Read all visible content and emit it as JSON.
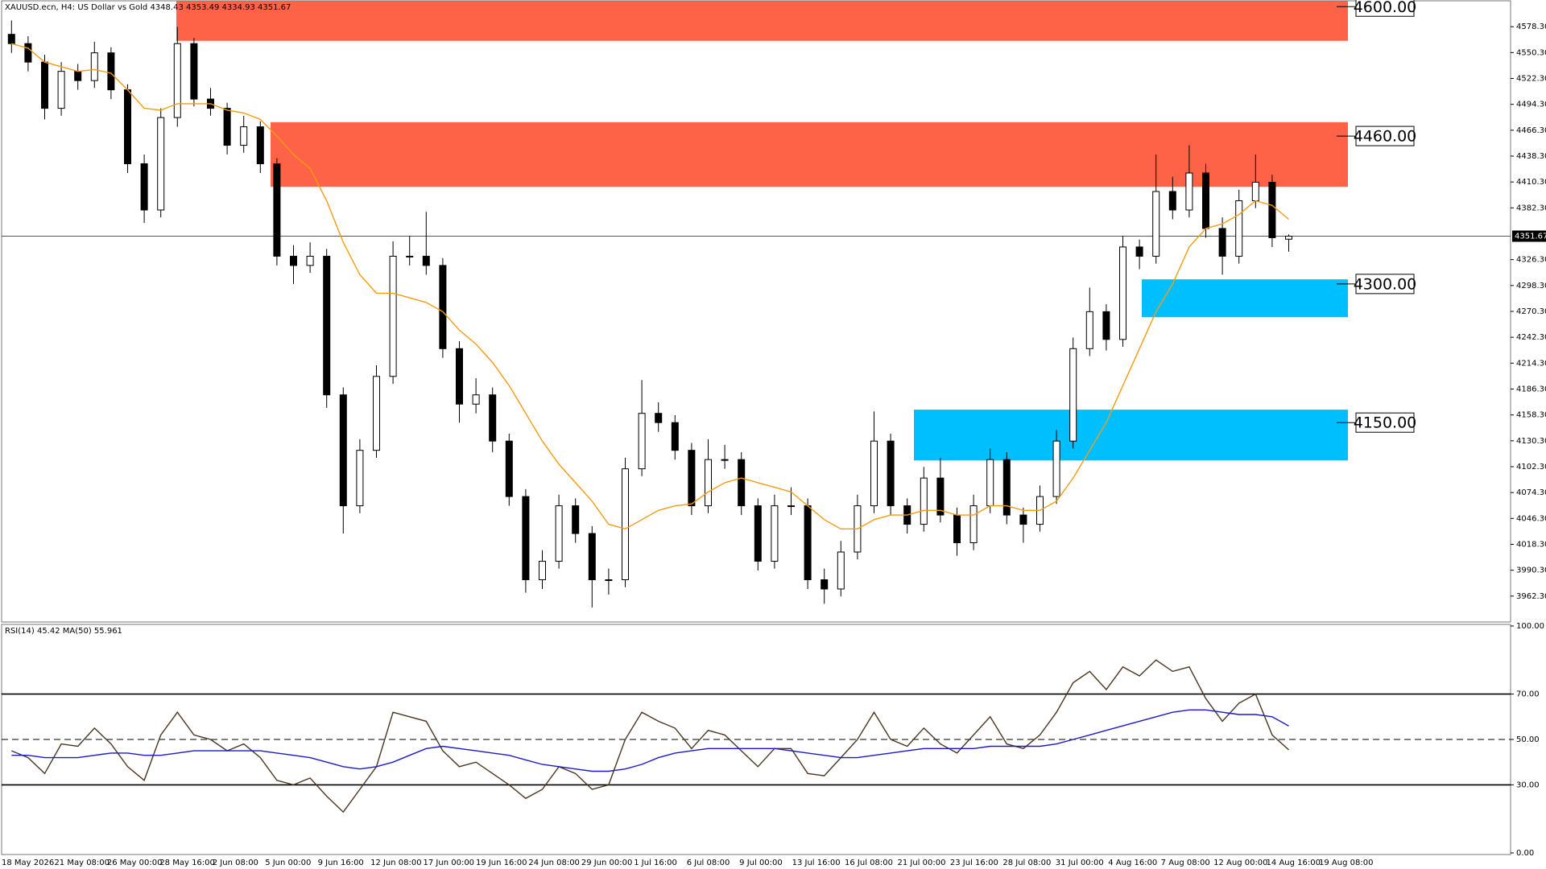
{
  "chart_data": [
    {
      "type": "candlestick",
      "title": "XAUUSD.ecn, H4:  US Dollar vs Gold  4348.43 4353.49 4334.93 4351.67",
      "date_labels": [
        "18 May 2026",
        "21 May 08:00",
        "26 May 00:00",
        "28 May 16:00",
        "2 Jun 08:00",
        "5 Jun 00:00",
        "9 Jun 16:00",
        "12 Jun 08:00",
        "17 Jun 00:00",
        "19 Jun 16:00",
        "24 Jun 08:00",
        "29 Jun 00:00",
        "1 Jul 16:00",
        "6 Jul 08:00",
        "9 Jul 00:00",
        "13 Jul 16:00",
        "16 Jul 08:00",
        "21 Jul 00:00",
        "23 Jul 16:00",
        "28 Jul 08:00",
        "31 Jul 00:00",
        "4 Aug 16:00",
        "7 Aug 08:00",
        "12 Aug 00:00",
        "14 Aug 16:00",
        "19 Aug 08:00"
      ],
      "ylim": [
        3934.3,
        4606.3
      ],
      "yticks": [
        {
          "value": 3962.3,
          "label": "3962.30"
        },
        {
          "value": 3990.3,
          "label": "3990.30"
        },
        {
          "value": 4018.3,
          "label": "4018.30"
        },
        {
          "value": 4046.3,
          "label": "4046.30"
        },
        {
          "value": 4074.3,
          "label": "4074.30"
        },
        {
          "value": 4102.3,
          "label": "4102.30"
        },
        {
          "value": 4130.3,
          "label": "4130.30"
        },
        {
          "value": 4158.3,
          "label": "4158.30"
        },
        {
          "value": 4186.3,
          "label": "4186.30"
        },
        {
          "value": 4214.3,
          "label": "4214.30"
        },
        {
          "value": 4242.3,
          "label": "4242.30"
        },
        {
          "value": 4270.3,
          "label": "4270.30"
        },
        {
          "value": 4298.3,
          "label": "4298.30"
        },
        {
          "value": 4326.3,
          "label": "4326.30"
        },
        {
          "value": 4382.3,
          "label": "4382.30"
        },
        {
          "value": 4410.3,
          "label": "4410.30"
        },
        {
          "value": 4438.3,
          "label": "4438.30"
        },
        {
          "value": 4466.3,
          "label": "4466.30"
        },
        {
          "value": 4494.3,
          "label": "4494.30"
        },
        {
          "value": 4522.3,
          "label": "4522.30"
        },
        {
          "value": 4550.3,
          "label": "4550.30"
        },
        {
          "value": 4578.3,
          "label": "4578.30"
        }
      ],
      "current_price": {
        "value": 4351.67,
        "label": "4351.67"
      },
      "zones": [
        {
          "top": 4606,
          "bottom": 4563,
          "color": "#ff6347",
          "label": {
            "value": 4600,
            "label": "4600.00"
          }
        },
        {
          "top": 4475,
          "bottom": 4405,
          "color": "#ff6347",
          "label": {
            "value": 4460,
            "label": "4460.00"
          }
        },
        {
          "top": 4305,
          "bottom": 4264,
          "color": "#00bfff",
          "label": {
            "value": 4300,
            "label": "4300.00"
          }
        },
        {
          "top": 4164,
          "bottom": 4109,
          "color": "#00bfff",
          "label": {
            "value": 4150,
            "label": "4150.00"
          }
        }
      ],
      "series": [
        {
          "color": "#000000",
          "values": [
            [
              4570,
              4585,
              4550,
              4560
            ],
            [
              4560,
              4568,
              4530,
              4540
            ],
            [
              4540,
              4548,
              4478,
              4490
            ],
            [
              4490,
              4540,
              4482,
              4530
            ],
            [
              4530,
              4538,
              4510,
              4520
            ],
            [
              4520,
              4562,
              4512,
              4550
            ],
            [
              4550,
              4556,
              4500,
              4510
            ],
            [
              4510,
              4516,
              4420,
              4430
            ],
            [
              4430,
              4440,
              4366,
              4380
            ],
            [
              4380,
              4490,
              4372,
              4480
            ],
            [
              4480,
              4578,
              4470,
              4560
            ],
            [
              4560,
              4566,
              4492,
              4500
            ],
            [
              4500,
              4512,
              4482,
              4490
            ],
            [
              4490,
              4496,
              4440,
              4450
            ],
            [
              4450,
              4482,
              4442,
              4470
            ],
            [
              4470,
              4476,
              4420,
              4430
            ],
            [
              4430,
              4436,
              4320,
              4330
            ],
            [
              4330,
              4342,
              4300,
              4320
            ],
            [
              4320,
              4345,
              4312,
              4330
            ],
            [
              4330,
              4338,
              4166,
              4180
            ],
            [
              4180,
              4188,
              4030,
              4060
            ],
            [
              4060,
              4132,
              4052,
              4120
            ],
            [
              4120,
              4212,
              4112,
              4200
            ],
            [
              4200,
              4346,
              4192,
              4330
            ],
            [
              4330,
              4352,
              4320,
              4330
            ],
            [
              4330,
              4378,
              4310,
              4320
            ],
            [
              4320,
              4328,
              4220,
              4230
            ],
            [
              4230,
              4238,
              4150,
              4170
            ],
            [
              4170,
              4198,
              4160,
              4180
            ],
            [
              4180,
              4188,
              4118,
              4130
            ],
            [
              4130,
              4138,
              4060,
              4070
            ],
            [
              4070,
              4078,
              3966,
              3980
            ],
            [
              3980,
              4012,
              3970,
              4000
            ],
            [
              4000,
              4072,
              3992,
              4060
            ],
            [
              4060,
              4068,
              4020,
              4030
            ],
            [
              4030,
              4038,
              3950,
              3980
            ],
            [
              3980,
              3992,
              3964,
              3980
            ],
            [
              3980,
              4112,
              3972,
              4100
            ],
            [
              4100,
              4196,
              4092,
              4160
            ],
            [
              4160,
              4172,
              4140,
              4150
            ],
            [
              4150,
              4158,
              4110,
              4120
            ],
            [
              4120,
              4128,
              4050,
              4060
            ],
            [
              4060,
              4132,
              4052,
              4110
            ],
            [
              4110,
              4126,
              4100,
              4110
            ],
            [
              4110,
              4118,
              4050,
              4060
            ],
            [
              4060,
              4068,
              3990,
              4000
            ],
            [
              4000,
              4072,
              3992,
              4060
            ],
            [
              4060,
              4080,
              4050,
              4060
            ],
            [
              4060,
              4068,
              3970,
              3980
            ],
            [
              3980,
              3992,
              3954,
              3970
            ],
            [
              3970,
              4022,
              3962,
              4010
            ],
            [
              4010,
              4072,
              4002,
              4060
            ],
            [
              4060,
              4162,
              4052,
              4130
            ],
            [
              4130,
              4138,
              4050,
              4060
            ],
            [
              4060,
              4068,
              4030,
              4040
            ],
            [
              4040,
              4102,
              4032,
              4090
            ],
            [
              4090,
              4112,
              4042,
              4050
            ],
            [
              4050,
              4058,
              4006,
              4020
            ],
            [
              4020,
              4072,
              4012,
              4060
            ],
            [
              4060,
              4122,
              4052,
              4110
            ],
            [
              4110,
              4118,
              4040,
              4050
            ],
            [
              4050,
              4058,
              4020,
              4040
            ],
            [
              4040,
              4082,
              4032,
              4070
            ],
            [
              4070,
              4142,
              4062,
              4130
            ],
            [
              4130,
              4242,
              4122,
              4230
            ],
            [
              4230,
              4296,
              4222,
              4270
            ],
            [
              4270,
              4278,
              4228,
              4240
            ],
            [
              4240,
              4352,
              4232,
              4340
            ],
            [
              4340,
              4348,
              4316,
              4330
            ],
            [
              4330,
              4440,
              4322,
              4400
            ],
            [
              4400,
              4416,
              4370,
              4380
            ],
            [
              4380,
              4450,
              4372,
              4420
            ],
            [
              4420,
              4430,
              4350,
              4360
            ],
            [
              4360,
              4372,
              4310,
              4330
            ],
            [
              4330,
              4402,
              4322,
              4390
            ],
            [
              4390,
              4440,
              4382,
              4410
            ],
            [
              4410,
              4418,
              4340,
              4350
            ],
            [
              4348.43,
              4353.49,
              4334.93,
              4351.67
            ]
          ]
        },
        {
          "color": "#f39c12",
          "values": [
            4560,
            4555,
            4540,
            4535,
            4530,
            4532,
            4528,
            4510,
            4490,
            4488,
            4495,
            4495,
            4495,
            4488,
            4485,
            4478,
            4460,
            4440,
            4425,
            4390,
            4345,
            4310,
            4290,
            4290,
            4285,
            4280,
            4270,
            4250,
            4235,
            4215,
            4190,
            4160,
            4130,
            4105,
            4085,
            4065,
            4040,
            4035,
            4045,
            4055,
            4060,
            4062,
            4075,
            4085,
            4090,
            4085,
            4080,
            4075,
            4060,
            4045,
            4035,
            4035,
            4045,
            4050,
            4050,
            4055,
            4055,
            4050,
            4050,
            4060,
            4060,
            4055,
            4055,
            4065,
            4090,
            4120,
            4150,
            4190,
            4230,
            4270,
            4300,
            4340,
            4360,
            4365,
            4375,
            4390,
            4385,
            4370
          ]
        }
      ]
    },
    {
      "type": "line",
      "title": "RSI(14) 45.42 MA(50) 55.961",
      "ylim": [
        0,
        100
      ],
      "yticks": [
        {
          "value": 0,
          "label": "0.00"
        },
        {
          "value": 30,
          "label": "30.00"
        },
        {
          "value": 50,
          "label": "50.00"
        },
        {
          "value": 70,
          "label": "70.00"
        },
        {
          "value": 100,
          "label": "100.00"
        }
      ],
      "series": [
        {
          "color": "#4a3520",
          "values": [
            45,
            42,
            35,
            48,
            47,
            55,
            48,
            38,
            32,
            52,
            62,
            52,
            50,
            45,
            48,
            42,
            32,
            30,
            33,
            25,
            18,
            28,
            38,
            62,
            60,
            58,
            45,
            38,
            40,
            35,
            30,
            24,
            28,
            38,
            35,
            28,
            30,
            50,
            62,
            58,
            55,
            46,
            54,
            52,
            45,
            38,
            46,
            46,
            35,
            34,
            42,
            50,
            62,
            50,
            47,
            55,
            48,
            44,
            52,
            60,
            48,
            46,
            52,
            62,
            75,
            80,
            72,
            82,
            78,
            85,
            80,
            82,
            68,
            58,
            66,
            70,
            52,
            45.42
          ]
        },
        {
          "color": "#1a1ac8",
          "values": [
            43,
            43,
            42,
            42,
            42,
            43,
            44,
            44,
            43,
            43,
            44,
            45,
            45,
            45,
            45,
            45,
            44,
            43,
            42,
            40,
            38,
            37,
            38,
            40,
            43,
            46,
            47,
            46,
            45,
            44,
            43,
            41,
            39,
            38,
            37,
            36,
            36,
            37,
            39,
            42,
            44,
            45,
            46,
            46,
            46,
            46,
            46,
            45,
            44,
            43,
            42,
            42,
            43,
            44,
            45,
            46,
            46,
            46,
            46,
            47,
            47,
            47,
            47,
            48,
            50,
            52,
            54,
            56,
            58,
            60,
            62,
            63,
            63,
            62,
            61,
            61,
            60,
            55.961
          ]
        }
      ]
    }
  ]
}
